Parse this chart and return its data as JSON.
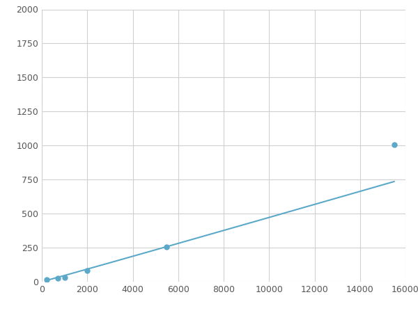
{
  "x": [
    200,
    700,
    1000,
    2000,
    5500,
    15500
  ],
  "y": [
    15,
    25,
    30,
    80,
    255,
    1005
  ],
  "line_color": "#5ba8c8",
  "marker_color": "#5ba8c8",
  "marker_size": 5,
  "line_width": 1.5,
  "xlim": [
    0,
    16000
  ],
  "ylim": [
    0,
    2000
  ],
  "xticks": [
    0,
    2000,
    4000,
    6000,
    8000,
    10000,
    12000,
    14000,
    16000
  ],
  "yticks": [
    0,
    250,
    500,
    750,
    1000,
    1250,
    1500,
    1750,
    2000
  ],
  "grid_color": "#d0d0d0",
  "background_color": "#ffffff",
  "figure_bg": "#ffffff",
  "tick_fontsize": 9,
  "tick_color": "#555555"
}
